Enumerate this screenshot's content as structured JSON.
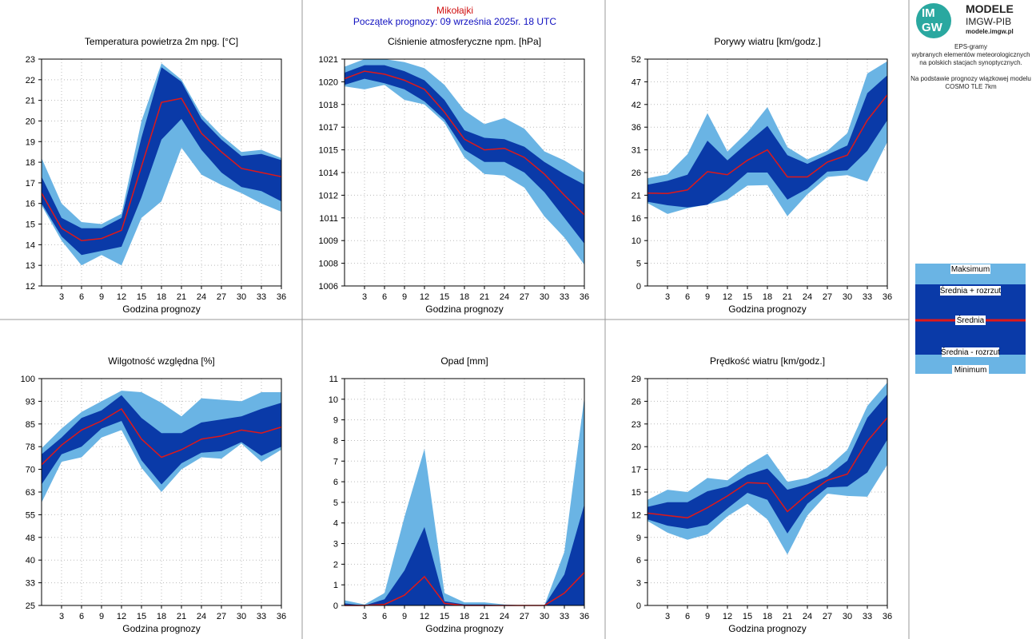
{
  "header": {
    "station": "Mikołajki",
    "start": "Początek prognozy: 09 września 2025r. 18 UTC"
  },
  "logo": {
    "mark_top": "IM",
    "mark_bottom": "GW",
    "title": "MODELE",
    "subtitle": "IMGW-PIB",
    "url": "modele.imgw.pl"
  },
  "description": {
    "line1": "EPS-gramy",
    "line2": "wybranych elementów meteorologicznych",
    "line3": "na polskich stacjach  synoptycznych.",
    "line4": "Na podstawie prognozy wiązkowej modelu",
    "line5": "COSMO TLE 7km"
  },
  "legend": {
    "max": "Maksimum",
    "plus": "Średnia + rozrzut",
    "mean": "Średnia",
    "minus": "Średnia - rozrzut",
    "min": "Minimum"
  },
  "colors": {
    "outer_band": "#6ab4e4",
    "inner_band": "#0a3aa8",
    "mean_line": "#e01818"
  },
  "chart_data": [
    {
      "type": "area",
      "title": "Temperatura powietrza 2m npg. [°C]",
      "xlabel": "Godzina prognozy",
      "x": [
        0,
        3,
        6,
        9,
        12,
        15,
        18,
        21,
        24,
        27,
        30,
        33,
        36
      ],
      "x_ticks": [
        "3",
        "6",
        "9",
        "12",
        "15",
        "18",
        "21",
        "24",
        "27",
        "30",
        "33",
        "36"
      ],
      "ylim": [
        12,
        23
      ],
      "y_ticks": [
        "12",
        "13",
        "14",
        "15",
        "16",
        "17",
        "18",
        "19",
        "20",
        "21",
        "22",
        "23"
      ],
      "min": [
        15.9,
        14.2,
        13.0,
        13.5,
        13.0,
        15.3,
        16.1,
        18.7,
        17.4,
        16.9,
        16.5,
        16.0,
        15.6
      ],
      "minus": [
        16.0,
        14.4,
        13.5,
        13.7,
        13.9,
        16.3,
        19.1,
        20.1,
        18.6,
        17.5,
        16.8,
        16.6,
        16.1
      ],
      "mean": [
        16.5,
        14.8,
        14.2,
        14.3,
        14.7,
        17.8,
        20.9,
        21.1,
        19.4,
        18.5,
        17.7,
        17.5,
        17.3
      ],
      "plus": [
        17.3,
        15.3,
        14.8,
        14.8,
        15.3,
        19.2,
        22.6,
        21.9,
        20.1,
        19.1,
        18.3,
        18.4,
        18.1
      ],
      "max": [
        18.2,
        16.0,
        15.1,
        15.0,
        15.5,
        20.0,
        22.8,
        22.0,
        20.3,
        19.3,
        18.5,
        18.6,
        18.2
      ]
    },
    {
      "type": "area",
      "title": "Ciśnienie atmosferyczne npm. [hPa]",
      "xlabel": "Godzina prognozy",
      "x": [
        0,
        3,
        6,
        9,
        12,
        15,
        18,
        21,
        24,
        27,
        30,
        33,
        36
      ],
      "x_ticks": [
        "3",
        "6",
        "9",
        "12",
        "15",
        "18",
        "21",
        "24",
        "27",
        "30",
        "33",
        "36"
      ],
      "ylim": [
        1006,
        1021
      ],
      "y_ticks": [
        "1006",
        "1008",
        "1009",
        "1011",
        "1012",
        "1014",
        "1015",
        "1017",
        "1018",
        "1020",
        "1021"
      ],
      "min": [
        1019.2,
        1019.0,
        1019.3,
        1018.3,
        1018.0,
        1016.8,
        1014.5,
        1013.4,
        1013.3,
        1012.5,
        1010.6,
        1009.2,
        1007.4
      ],
      "minus": [
        1019.3,
        1019.7,
        1019.4,
        1019.0,
        1018.2,
        1017.0,
        1015.0,
        1014.2,
        1014.2,
        1013.5,
        1012.2,
        1010.5,
        1008.8
      ],
      "mean": [
        1019.7,
        1020.2,
        1020.0,
        1019.6,
        1019.0,
        1017.5,
        1015.7,
        1015.0,
        1015.1,
        1014.5,
        1013.4,
        1012.0,
        1010.7
      ],
      "plus": [
        1020.1,
        1020.6,
        1020.6,
        1020.2,
        1019.6,
        1018.3,
        1016.3,
        1015.8,
        1015.7,
        1015.2,
        1014.2,
        1013.4,
        1012.7
      ],
      "max": [
        1020.5,
        1021.0,
        1021.0,
        1020.8,
        1020.4,
        1019.3,
        1017.6,
        1016.7,
        1017.1,
        1016.4,
        1014.9,
        1014.3,
        1013.5
      ]
    },
    {
      "type": "area",
      "title": "Porywy wiatru [km/godz.]",
      "xlabel": "Godzina prognozy",
      "x": [
        0,
        3,
        6,
        9,
        12,
        15,
        18,
        21,
        24,
        27,
        30,
        33,
        36
      ],
      "x_ticks": [
        "3",
        "6",
        "9",
        "12",
        "15",
        "18",
        "21",
        "24",
        "27",
        "30",
        "33",
        "36"
      ],
      "ylim": [
        0,
        52
      ],
      "y_ticks": [
        "0",
        "5",
        "10",
        "16",
        "21",
        "26",
        "31",
        "36",
        "42",
        "47",
        "52"
      ],
      "min": [
        19.0,
        16.5,
        17.8,
        18.7,
        19.8,
        23.0,
        23.1,
        16.0,
        21.0,
        25.0,
        25.4,
        23.9,
        33.0
      ],
      "minus": [
        19.3,
        18.5,
        18.0,
        18.6,
        22.0,
        26.0,
        26.0,
        19.8,
        22.3,
        26.2,
        26.5,
        31.0,
        38.0
      ],
      "mean": [
        21.3,
        21.2,
        22.0,
        26.2,
        25.5,
        28.8,
        31.2,
        25.0,
        25.0,
        28.4,
        30.0,
        38.0,
        43.8
      ],
      "plus": [
        23.2,
        24.1,
        25.5,
        33.3,
        28.8,
        32.8,
        36.7,
        30.0,
        28.0,
        30.1,
        32.2,
        44.2,
        48.3
      ],
      "max": [
        24.7,
        25.6,
        30.2,
        39.6,
        30.8,
        35.3,
        41.0,
        31.8,
        29.0,
        31.0,
        35.0,
        48.7,
        51.5
      ]
    },
    {
      "type": "area",
      "title": "Wilgotność względna [%]",
      "xlabel": "Godzina prognozy",
      "x": [
        0,
        3,
        6,
        9,
        12,
        15,
        18,
        21,
        24,
        27,
        30,
        33,
        36
      ],
      "x_ticks": [
        "3",
        "6",
        "9",
        "12",
        "15",
        "18",
        "21",
        "24",
        "27",
        "30",
        "33",
        "36"
      ],
      "ylim": [
        25,
        100
      ],
      "y_ticks": [
        "25",
        "33",
        "40",
        "48",
        "55",
        "63",
        "70",
        "78",
        "85",
        "93",
        "100"
      ],
      "min": [
        59.0,
        72.5,
        74.0,
        80.5,
        83.0,
        70.5,
        62.5,
        70.0,
        74.0,
        73.5,
        78.5,
        72.5,
        76.5
      ],
      "minus": [
        65.0,
        75.0,
        77.5,
        83.5,
        86.0,
        73.0,
        65.0,
        72.0,
        75.5,
        76.0,
        79.0,
        74.5,
        77.5
      ],
      "mean": [
        71.5,
        78.0,
        83.0,
        86.0,
        90.0,
        80.0,
        74.0,
        76.5,
        80.0,
        81.0,
        83.0,
        82.0,
        84.0
      ],
      "plus": [
        75.0,
        80.5,
        87.0,
        89.5,
        94.5,
        87.0,
        82.0,
        82.0,
        85.5,
        86.5,
        87.5,
        90.0,
        92.0
      ],
      "max": [
        77.0,
        83.5,
        89.0,
        92.5,
        96.0,
        95.5,
        92.0,
        87.5,
        93.5,
        93.0,
        92.5,
        95.5,
        95.5
      ]
    },
    {
      "type": "area",
      "title": "Opad [mm]",
      "xlabel": "Godzina prognozy",
      "x": [
        0,
        3,
        6,
        9,
        12,
        15,
        18,
        21,
        24,
        27,
        30,
        33,
        36
      ],
      "x_ticks": [
        "3",
        "6",
        "9",
        "12",
        "15",
        "18",
        "21",
        "24",
        "27",
        "30",
        "33",
        "36"
      ],
      "ylim": [
        0,
        11
      ],
      "y_ticks": [
        "0",
        "1",
        "2",
        "3",
        "4",
        "5",
        "6",
        "7",
        "8",
        "9",
        "10",
        "11"
      ],
      "min": [
        0,
        0,
        0,
        0,
        0,
        0,
        0,
        0,
        0,
        0,
        0,
        0,
        0
      ],
      "minus": [
        0,
        0,
        0,
        0,
        0,
        0,
        0,
        0,
        0,
        0,
        0,
        0,
        0
      ],
      "mean": [
        0,
        0,
        0.05,
        0.5,
        1.4,
        0.1,
        0,
        0,
        0,
        0,
        0,
        0.6,
        1.6
      ],
      "plus": [
        0.1,
        0,
        0.3,
        1.7,
        3.8,
        0.2,
        0.05,
        0.05,
        0,
        0,
        0,
        1.5,
        4.9
      ],
      "max": [
        0.25,
        0.05,
        0.6,
        4.3,
        7.6,
        0.6,
        0.15,
        0.15,
        0.05,
        0,
        0,
        2.6,
        10.1
      ]
    },
    {
      "type": "area",
      "title": "Prędkość wiatru [km/godz.]",
      "xlabel": "Godzina prognozy",
      "x": [
        0,
        3,
        6,
        9,
        12,
        15,
        18,
        21,
        24,
        27,
        30,
        33,
        36
      ],
      "x_ticks": [
        "3",
        "6",
        "9",
        "12",
        "15",
        "18",
        "21",
        "24",
        "27",
        "30",
        "33",
        "36"
      ],
      "ylim": [
        0,
        29
      ],
      "y_ticks": [
        "0",
        "3",
        "6",
        "9",
        "12",
        "15",
        "17",
        "20",
        "23",
        "26",
        "29"
      ],
      "min": [
        10.8,
        9.3,
        8.4,
        9.1,
        11.4,
        13.0,
        11.0,
        6.5,
        11.5,
        14.3,
        14.0,
        13.9,
        18.0
      ],
      "minus": [
        11.0,
        10.2,
        9.8,
        10.3,
        12.4,
        14.4,
        13.5,
        9.2,
        13.0,
        15.1,
        15.2,
        17.0,
        21.2
      ],
      "mean": [
        11.8,
        11.5,
        11.2,
        12.5,
        14.0,
        15.7,
        15.6,
        12.0,
        14.2,
        16.0,
        16.8,
        21.0,
        24.0
      ],
      "plus": [
        12.6,
        13.2,
        13.2,
        14.6,
        15.2,
        16.7,
        17.5,
        14.8,
        15.5,
        16.5,
        18.5,
        24.0,
        27.0
      ],
      "max": [
        13.5,
        14.8,
        14.5,
        16.3,
        16.0,
        17.9,
        19.4,
        15.8,
        16.3,
        17.6,
        19.9,
        25.5,
        28.5
      ]
    }
  ]
}
